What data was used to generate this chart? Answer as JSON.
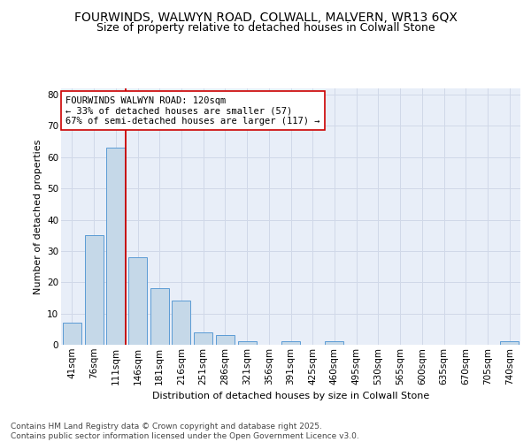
{
  "title_line1": "FOURWINDS, WALWYN ROAD, COLWALL, MALVERN, WR13 6QX",
  "title_line2": "Size of property relative to detached houses in Colwall Stone",
  "xlabel": "Distribution of detached houses by size in Colwall Stone",
  "ylabel": "Number of detached properties",
  "categories": [
    "41sqm",
    "76sqm",
    "111sqm",
    "146sqm",
    "181sqm",
    "216sqm",
    "251sqm",
    "286sqm",
    "321sqm",
    "356sqm",
    "391sqm",
    "425sqm",
    "460sqm",
    "495sqm",
    "530sqm",
    "565sqm",
    "600sqm",
    "635sqm",
    "670sqm",
    "705sqm",
    "740sqm"
  ],
  "values": [
    7,
    35,
    63,
    28,
    18,
    14,
    4,
    3,
    1,
    0,
    1,
    0,
    1,
    0,
    0,
    0,
    0,
    0,
    0,
    0,
    1
  ],
  "bar_color": "#c5d8e8",
  "bar_edge_color": "#5b9bd5",
  "vline_color": "#cc0000",
  "annotation_text": "FOURWINDS WALWYN ROAD: 120sqm\n← 33% of detached houses are smaller (57)\n67% of semi-detached houses are larger (117) →",
  "annotation_box_color": "#ffffff",
  "annotation_box_edge": "#cc0000",
  "ylim": [
    0,
    82
  ],
  "yticks": [
    0,
    10,
    20,
    30,
    40,
    50,
    60,
    70,
    80
  ],
  "grid_color": "#d0d8e8",
  "bg_color": "#e8eef8",
  "footer_text": "Contains HM Land Registry data © Crown copyright and database right 2025.\nContains public sector information licensed under the Open Government Licence v3.0.",
  "title_fontsize": 10,
  "subtitle_fontsize": 9,
  "axis_label_fontsize": 8,
  "tick_fontsize": 7.5,
  "annotation_fontsize": 7.5,
  "footer_fontsize": 6.5
}
